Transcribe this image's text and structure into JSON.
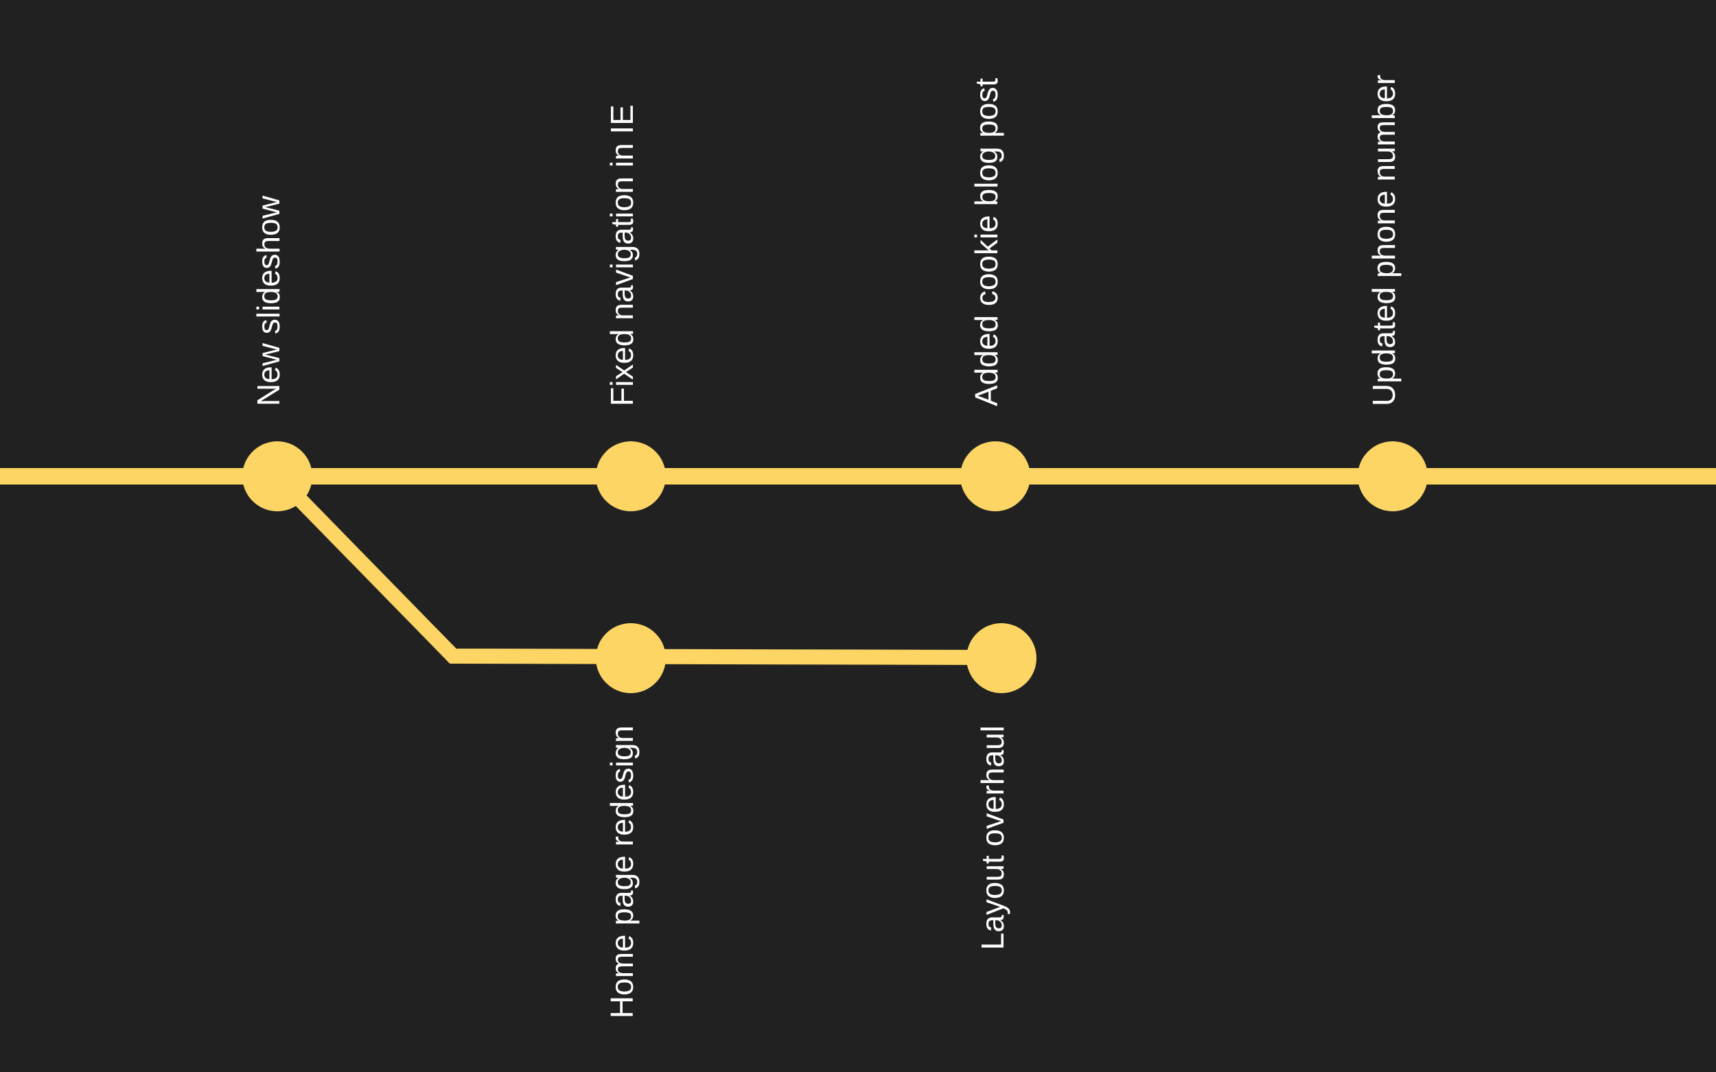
{
  "diagram": {
    "title": "",
    "colors": {
      "background": "#212121",
      "line": "#FCD565",
      "text": "#FFFFFF"
    },
    "main_branch": {
      "commits": [
        {
          "id": "c1",
          "label": "New slideshow"
        },
        {
          "id": "c2",
          "label": "Fixed navigation in IE"
        },
        {
          "id": "c3",
          "label": "Added cookie blog post"
        },
        {
          "id": "c4",
          "label": "Updated phone number"
        }
      ]
    },
    "feature_branch": {
      "branches_from": "c1",
      "commits": [
        {
          "id": "f1",
          "label": "Home page redesign"
        },
        {
          "id": "f2",
          "label": "Layout overhaul"
        }
      ]
    }
  }
}
